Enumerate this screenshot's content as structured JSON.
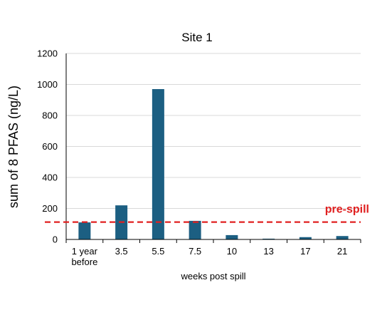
{
  "chart_data": {
    "type": "bar",
    "title": "Site 1",
    "xlabel": "weeks post spill",
    "ylabel": "sum of 8 PFAS (ng/L)",
    "categories": [
      [
        "1 year",
        "before"
      ],
      [
        "3.5"
      ],
      [
        "5.5"
      ],
      [
        "7.5"
      ],
      [
        "10"
      ],
      [
        "13"
      ],
      [
        "17"
      ],
      [
        "21"
      ]
    ],
    "values": [
      110,
      220,
      970,
      120,
      28,
      5,
      15,
      22
    ],
    "ylim": [
      0,
      1200
    ],
    "yticks": [
      0,
      200,
      400,
      600,
      800,
      1000,
      1200
    ],
    "grid": true,
    "bar_color": "#1c5f82",
    "reference_line": {
      "value": 112,
      "label": "pre-spill",
      "color": "#e02020",
      "style": "dashed"
    }
  }
}
